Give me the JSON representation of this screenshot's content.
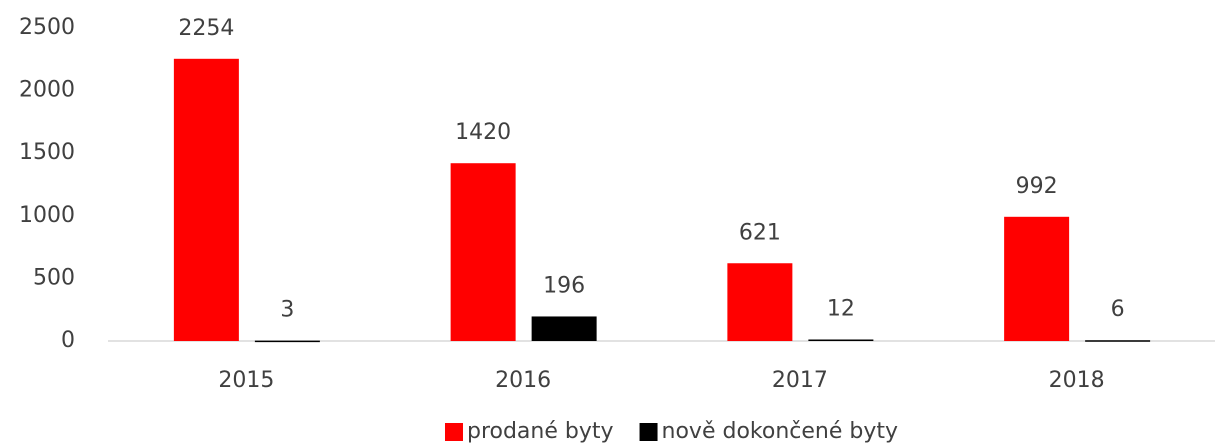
{
  "chart_data": {
    "type": "bar",
    "categories": [
      "2015",
      "2016",
      "2017",
      "2018"
    ],
    "series": [
      {
        "name": "prodané byty",
        "color": "#ff0000",
        "values": [
          2254,
          1420,
          621,
          992
        ]
      },
      {
        "name": "nově dokončené byty",
        "color": "#000000",
        "values": [
          3,
          196,
          12,
          6
        ]
      }
    ],
    "ylim": [
      0,
      2500
    ],
    "yticks": [
      0,
      500,
      1000,
      1500,
      2000,
      2500
    ],
    "grid": false,
    "legend": "bottom"
  }
}
